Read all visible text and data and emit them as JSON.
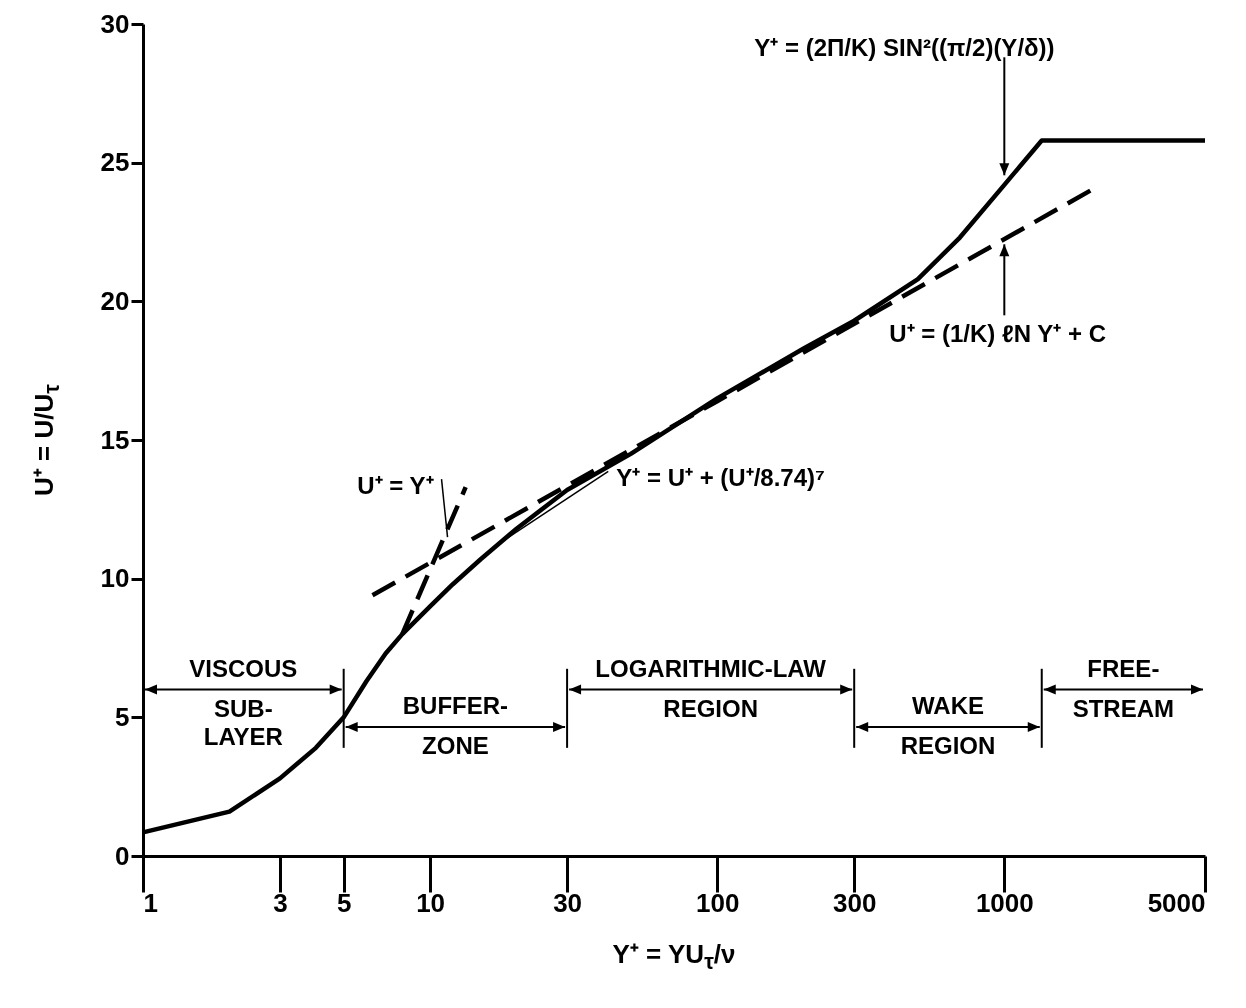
{
  "chart_data": {
    "type": "line",
    "xlabel": "Y⁺ = YU$_{τ}$/ν",
    "ylabel": "U⁺ = U/U$_{τ}$",
    "log": "x",
    "xlim": [
      1,
      5000
    ],
    "ylim": [
      0,
      30
    ],
    "xticks": [
      1,
      3,
      5,
      10,
      30,
      100,
      300,
      1000,
      5000
    ],
    "yticks": [
      0,
      5,
      10,
      15,
      20,
      25,
      30
    ],
    "grid": false,
    "series": [
      {
        "color": "#000000",
        "line_style": "solid",
        "x": [
          1,
          2,
          3,
          4,
          5,
          6,
          7,
          8,
          10,
          12,
          15,
          20,
          30,
          50,
          100,
          200,
          300,
          500,
          700,
          1000,
          1350,
          5000
        ],
        "values": [
          0.85,
          1.6,
          2.8,
          3.9,
          5.0,
          6.3,
          7.3,
          8.0,
          9.0,
          9.8,
          10.7,
          11.8,
          13.2,
          14.5,
          16.5,
          18.3,
          19.3,
          20.8,
          22.3,
          24.2,
          25.8,
          25.8
        ]
      },
      {
        "color": "#000000",
        "line_style": "dashed",
        "x": [
          8,
          13.3
        ],
        "values": [
          8,
          13.3
        ]
      },
      {
        "color": "#000000",
        "line_style": "dashed",
        "x": [
          6.3,
          100,
          2000
        ],
        "values": [
          9.4,
          16.4,
          24.0
        ]
      }
    ],
    "ref_lines": [
      {
        "axis": "x",
        "value": 5
      },
      {
        "axis": "x",
        "value": 30
      },
      {
        "axis": "x",
        "value": 300
      },
      {
        "axis": "x",
        "value": 1350
      }
    ],
    "annotations": [
      {
        "text": "U⁺ = Y⁺",
        "x": 11.5,
        "y": 11.5
      },
      {
        "text": "Y⁺ = U⁺ + (U⁺/8.74)⁷",
        "x": 17,
        "y": 11.2
      },
      {
        "text": "Y⁺ = (2Π/K) SIN²((π/2)(Y/δ))",
        "x": 1000,
        "y": 24.4
      },
      {
        "text": "U⁺ = (1/K) ℓN Y⁺ + C",
        "x": 1000,
        "y": 22.2
      },
      "VISCOUS\nSUB-\nLAYER",
      "BUFFER-\nZONE",
      "LOGARITHMIC-LAW\nREGION",
      "WAKE\nREGION",
      "FREE-\nSTREAM"
    ]
  }
}
